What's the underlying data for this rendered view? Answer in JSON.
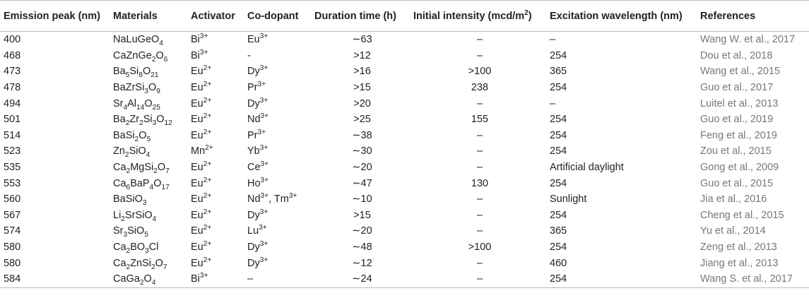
{
  "headers": {
    "emission_peak": "Emission peak (nm)",
    "materials": "Materials",
    "activator": "Activator",
    "codopant": "Co-dopant",
    "duration": "Duration time (h)",
    "intensity_prefix": "Initial intensity (mcd/m",
    "intensity_sup": "2",
    "intensity_suffix": ")",
    "excitation": "Excitation wavelength (nm)",
    "references": "References"
  },
  "rows": [
    {
      "peak": "400",
      "material": [
        [
          "NaLuGeO",
          ""
        ],
        [
          "4",
          "sub"
        ]
      ],
      "activator": [
        [
          "Bi",
          ""
        ],
        [
          "3+",
          "sup"
        ]
      ],
      "codopant": [
        [
          "Eu",
          ""
        ],
        [
          "3+",
          "sup"
        ]
      ],
      "duration": "∼63",
      "intensity": "–",
      "excitation": "–",
      "reference": "Wang W. et al., 2017"
    },
    {
      "peak": "468",
      "material": [
        [
          "CaZnGe",
          ""
        ],
        [
          "2",
          "sub"
        ],
        [
          "O",
          ""
        ],
        [
          "6",
          "sub"
        ]
      ],
      "activator": [
        [
          "Bi",
          ""
        ],
        [
          "3+",
          "sup"
        ]
      ],
      "codopant": [
        [
          "-",
          ""
        ]
      ],
      "duration": ">12",
      "intensity": "–",
      "excitation": "254",
      "reference": "Dou et al., 2018"
    },
    {
      "peak": "473",
      "material": [
        [
          "Ba",
          ""
        ],
        [
          "5",
          "sub"
        ],
        [
          "Si",
          ""
        ],
        [
          "8",
          "sub"
        ],
        [
          "O",
          ""
        ],
        [
          "21",
          "sub"
        ]
      ],
      "activator": [
        [
          "Eu",
          ""
        ],
        [
          "2+",
          "sup"
        ]
      ],
      "codopant": [
        [
          "Dy",
          ""
        ],
        [
          "3+",
          "sup"
        ]
      ],
      "duration": ">16",
      "intensity": ">100",
      "excitation": "365",
      "reference": "Wang et al., 2015"
    },
    {
      "peak": "478",
      "material": [
        [
          "BaZrSi",
          ""
        ],
        [
          "3",
          "sub"
        ],
        [
          "O",
          ""
        ],
        [
          "9",
          "sub"
        ]
      ],
      "activator": [
        [
          "Eu",
          ""
        ],
        [
          "2+",
          "sup"
        ]
      ],
      "codopant": [
        [
          "Pr",
          ""
        ],
        [
          "3+",
          "sup"
        ]
      ],
      "duration": ">15",
      "intensity": "238",
      "excitation": "254",
      "reference": "Guo et al., 2017"
    },
    {
      "peak": "494",
      "material": [
        [
          "Sr",
          ""
        ],
        [
          "4",
          "sub"
        ],
        [
          "Al",
          ""
        ],
        [
          "14",
          "sub"
        ],
        [
          "O",
          ""
        ],
        [
          "25",
          "sub"
        ]
      ],
      "activator": [
        [
          "Eu",
          ""
        ],
        [
          "2+",
          "sup"
        ]
      ],
      "codopant": [
        [
          "Dy",
          ""
        ],
        [
          "3+",
          "sup"
        ]
      ],
      "duration": ">20",
      "intensity": "–",
      "excitation": "–",
      "reference": "Luitel et al., 2013"
    },
    {
      "peak": "501",
      "material": [
        [
          "Ba",
          ""
        ],
        [
          "2",
          "sub"
        ],
        [
          "Zr",
          ""
        ],
        [
          "2",
          "sub"
        ],
        [
          "Si",
          ""
        ],
        [
          "3",
          "sub"
        ],
        [
          "O",
          ""
        ],
        [
          "12",
          "sub"
        ]
      ],
      "activator": [
        [
          "Eu",
          ""
        ],
        [
          "2+",
          "sup"
        ]
      ],
      "codopant": [
        [
          "Nd",
          ""
        ],
        [
          "3+",
          "sup"
        ]
      ],
      "duration": ">25",
      "intensity": "155",
      "excitation": "254",
      "reference": "Guo et al., 2019"
    },
    {
      "peak": "514",
      "material": [
        [
          "BaSi",
          ""
        ],
        [
          "2",
          "sub"
        ],
        [
          "O",
          ""
        ],
        [
          "5",
          "sub"
        ]
      ],
      "activator": [
        [
          "Eu",
          ""
        ],
        [
          "2+",
          "sup"
        ]
      ],
      "codopant": [
        [
          "Pr",
          ""
        ],
        [
          "3+",
          "sup"
        ]
      ],
      "duration": "∼38",
      "intensity": "–",
      "excitation": "254",
      "reference": "Feng et al., 2019"
    },
    {
      "peak": "523",
      "material": [
        [
          "Zn",
          ""
        ],
        [
          "2",
          "sub"
        ],
        [
          "SiO",
          ""
        ],
        [
          "4",
          "sub"
        ]
      ],
      "activator": [
        [
          "Mn",
          ""
        ],
        [
          "2+",
          "sup"
        ]
      ],
      "codopant": [
        [
          "Yb",
          ""
        ],
        [
          "3+",
          "sup"
        ]
      ],
      "duration": "∼30",
      "intensity": "–",
      "excitation": "254",
      "reference": "Zou et al., 2015"
    },
    {
      "peak": "535",
      "material": [
        [
          "Ca",
          ""
        ],
        [
          "2",
          "sub"
        ],
        [
          "MgSi",
          ""
        ],
        [
          "2",
          "sub"
        ],
        [
          "O",
          ""
        ],
        [
          "7",
          "sub"
        ]
      ],
      "activator": [
        [
          "Eu",
          ""
        ],
        [
          "2+",
          "sup"
        ]
      ],
      "codopant": [
        [
          "Ce",
          ""
        ],
        [
          "3+",
          "sup"
        ]
      ],
      "duration": "∼20",
      "intensity": "–",
      "excitation": "Artificial daylight",
      "reference": "Gong et al., 2009"
    },
    {
      "peak": "553",
      "material": [
        [
          "Ca",
          ""
        ],
        [
          "6",
          "sub"
        ],
        [
          "BaP",
          ""
        ],
        [
          "4",
          "sub"
        ],
        [
          "O",
          ""
        ],
        [
          "17",
          "sub"
        ]
      ],
      "activator": [
        [
          "Eu",
          ""
        ],
        [
          "2+",
          "sup"
        ]
      ],
      "codopant": [
        [
          "Ho",
          ""
        ],
        [
          "3+",
          "sup"
        ]
      ],
      "duration": "∼47",
      "intensity": "130",
      "excitation": "254",
      "reference": "Guo et al., 2015"
    },
    {
      "peak": "560",
      "material": [
        [
          "BaSiO",
          ""
        ],
        [
          "3",
          "sub"
        ]
      ],
      "activator": [
        [
          "Eu",
          ""
        ],
        [
          "2+",
          "sup"
        ]
      ],
      "codopant": [
        [
          "Nd",
          ""
        ],
        [
          "3+",
          "sup"
        ],
        [
          ", Tm",
          ""
        ],
        [
          "3+",
          "sup"
        ]
      ],
      "duration": "∼10",
      "intensity": "–",
      "excitation": "Sunlight",
      "reference": "Jia et al., 2016"
    },
    {
      "peak": "567",
      "material": [
        [
          "Li",
          ""
        ],
        [
          "2",
          "sub"
        ],
        [
          "SrSiO",
          ""
        ],
        [
          "4",
          "sub"
        ]
      ],
      "activator": [
        [
          "Eu",
          ""
        ],
        [
          "2+",
          "sup"
        ]
      ],
      "codopant": [
        [
          "Dy",
          ""
        ],
        [
          "3+",
          "sup"
        ]
      ],
      "duration": ">15",
      "intensity": "–",
      "excitation": "254",
      "reference": "Cheng et al., 2015"
    },
    {
      "peak": "574",
      "material": [
        [
          "Sr",
          ""
        ],
        [
          "3",
          "sub"
        ],
        [
          "SiO",
          ""
        ],
        [
          "5",
          "sub"
        ]
      ],
      "activator": [
        [
          "Eu",
          ""
        ],
        [
          "2+",
          "sup"
        ]
      ],
      "codopant": [
        [
          "Lu",
          ""
        ],
        [
          "3+",
          "sup"
        ]
      ],
      "duration": "∼20",
      "intensity": "–",
      "excitation": "365",
      "reference": "Yu et al., 2014"
    },
    {
      "peak": "580",
      "material": [
        [
          "Ca",
          ""
        ],
        [
          "2",
          "sub"
        ],
        [
          "BO",
          ""
        ],
        [
          "3",
          "sub"
        ],
        [
          "Cl",
          ""
        ]
      ],
      "activator": [
        [
          "Eu",
          ""
        ],
        [
          "2+",
          "sup"
        ]
      ],
      "codopant": [
        [
          "Dy",
          ""
        ],
        [
          "3+",
          "sup"
        ]
      ],
      "duration": "∼48",
      "intensity": ">100",
      "excitation": "254",
      "reference": "Zeng et al., 2013"
    },
    {
      "peak": "580",
      "material": [
        [
          "Ca",
          ""
        ],
        [
          "2",
          "sub"
        ],
        [
          "ZnSi",
          ""
        ],
        [
          "2",
          "sub"
        ],
        [
          "O",
          ""
        ],
        [
          "7",
          "sub"
        ]
      ],
      "activator": [
        [
          "Eu",
          ""
        ],
        [
          "2+",
          "sup"
        ]
      ],
      "codopant": [
        [
          "Dy",
          ""
        ],
        [
          "3+",
          "sup"
        ]
      ],
      "duration": "∼12",
      "intensity": "–",
      "excitation": "460",
      "reference": "Jiang et al., 2013"
    },
    {
      "peak": "584",
      "material": [
        [
          "CaGa",
          ""
        ],
        [
          "2",
          "sub"
        ],
        [
          "O",
          ""
        ],
        [
          "4",
          "sub"
        ]
      ],
      "activator": [
        [
          "Bi",
          ""
        ],
        [
          "3+",
          "sup"
        ]
      ],
      "codopant": [
        [
          "–",
          ""
        ]
      ],
      "duration": "∼24",
      "intensity": "–",
      "excitation": "254",
      "reference": "Wang S. et al., 2017"
    }
  ]
}
